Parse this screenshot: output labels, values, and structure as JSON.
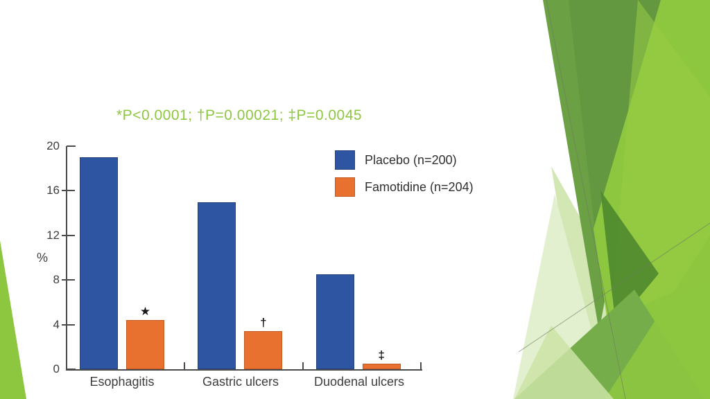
{
  "slide": {
    "annotation": "*P<0.0001; †P=0.00021; ‡P=0.0045",
    "annotation_color": "#8dc63f"
  },
  "chart_data": {
    "type": "bar",
    "title": "",
    "categories": [
      "Esophagitis",
      "Gastric ulcers",
      "Duodenal ulcers"
    ],
    "series": [
      {
        "name": "Placebo (n=200)",
        "color": "#2e55a1",
        "border_color": "#24427f",
        "values": [
          19,
          15,
          8.5
        ]
      },
      {
        "name": "Famotidine (n=204)",
        "color": "#e8712f",
        "border_color": "#c05a22",
        "values": [
          4.4,
          3.4,
          0.5
        ],
        "significance_markers": [
          "★",
          "†",
          "‡"
        ]
      }
    ],
    "xlabel": "",
    "ylabel": "%",
    "ylim": [
      0,
      20
    ],
    "yticks": [
      0,
      4,
      8,
      12,
      16,
      20
    ],
    "grid": false,
    "legend_position": "upper right",
    "annotation": "*P<0.0001; †P=0.00021; ‡P=0.0045",
    "text_color": "#3d3d3d",
    "axis_color": "#4a4b4d"
  },
  "decoration": {
    "theme_greens": [
      "#8dc63f",
      "#6ba045",
      "#4f8a2e",
      "#74ad49",
      "#d3e7b4",
      "#e2f0cf"
    ]
  }
}
